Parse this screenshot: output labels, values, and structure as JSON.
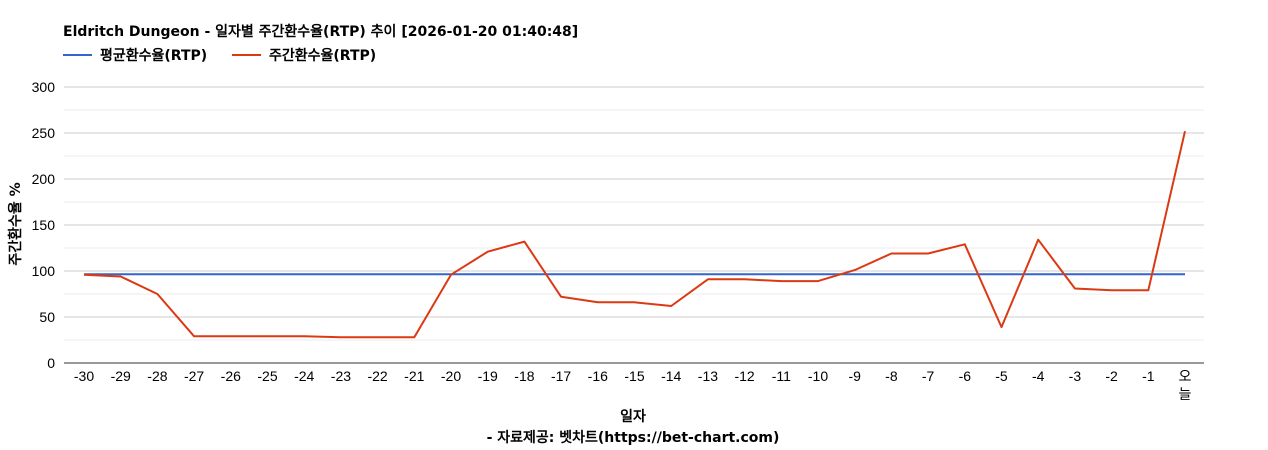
{
  "chart_data": {
    "type": "line",
    "title": "Eldritch Dungeon - 일자별 주간환수율(RTP) 추이 [2026-01-20 01:40:48]",
    "xlabel": "일자",
    "ylabel": "주간환수율 %",
    "source": "- 자료제공: 벳차트(https://bet-chart.com)",
    "ylim": [
      0,
      300
    ],
    "yticks": [
      "0",
      "50",
      "100",
      "150",
      "200",
      "250",
      "300"
    ],
    "grid": true,
    "legend_position": "top-left",
    "categories": [
      "-30",
      "-29",
      "-28",
      "-27",
      "-26",
      "-25",
      "-24",
      "-23",
      "-22",
      "-21",
      "-20",
      "-19",
      "-18",
      "-17",
      "-16",
      "-15",
      "-14",
      "-13",
      "-12",
      "-11",
      "-10",
      "-9",
      "-8",
      "-7",
      "-6",
      "-5",
      "-4",
      "-3",
      "-2",
      "-1",
      "오늘"
    ],
    "series": [
      {
        "name": "평균환수율(RTP)",
        "color": "#3366cc",
        "values": [
          96.5,
          96.5,
          96.5,
          96.5,
          96.5,
          96.5,
          96.5,
          96.5,
          96.5,
          96.5,
          96.5,
          96.5,
          96.5,
          96.5,
          96.5,
          96.5,
          96.5,
          96.5,
          96.5,
          96.5,
          96.5,
          96.5,
          96.5,
          96.5,
          96.5,
          96.5,
          96.5,
          96.5,
          96.5,
          96.5,
          96.5
        ]
      },
      {
        "name": "주간환수율(RTP)",
        "color": "#dc3912",
        "values": [
          96,
          94,
          75,
          29,
          29,
          29,
          29,
          28,
          28,
          28,
          96,
          121,
          132,
          72,
          66,
          66,
          62,
          91,
          91,
          89,
          89,
          101,
          119,
          119,
          129,
          39,
          134,
          81,
          79,
          79,
          252
        ]
      }
    ]
  }
}
